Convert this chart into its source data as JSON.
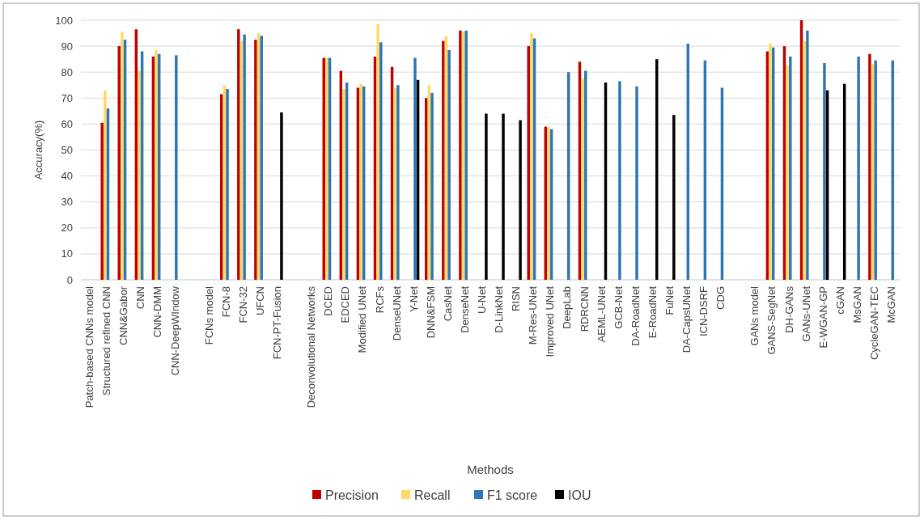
{
  "chart_data": {
    "type": "bar",
    "xlabel": "Methods",
    "ylabel": "Accuracy(%)",
    "categories": [
      "Patch-based CNNs model",
      "Structured refined CNN",
      "CNN&Gabor",
      "CNN",
      "CNN-DMM",
      "CNN-DeepWIndow",
      null,
      "FCNs model",
      "FCN-8",
      "FCN-32",
      "UFCN",
      "FCN-PT-Fusion",
      null,
      "Deconvolutional Networks",
      "DCED",
      "EDCED",
      "Modified UNet",
      "RCFs",
      "DenseUNet",
      "Y-Net",
      "DNN&FSM",
      "CasNet",
      "DenseNet",
      "U-Net",
      "D-LinkNet",
      "RISN",
      "M-Res-UNet",
      "Improved UNet",
      "DeepLab",
      "RDRCNN",
      "AEML-UNet",
      "GCB-Net",
      "DA-RoadNet",
      "E-RoadNet",
      "FuNet",
      "DA-CapsUNet",
      "ICN-DSRF",
      "CDG",
      null,
      "GANs model",
      "GANS-SegNet",
      "DH-GANs",
      "GANs-UNet",
      "E-WGAN-GP",
      "cGAN",
      "MsGAN",
      "CycleGAN-TEC",
      "McGAN"
    ],
    "series": [
      {
        "name": "Precision",
        "color": "#c00000",
        "values": [
          null,
          60.5,
          90,
          96.5,
          86,
          null,
          null,
          null,
          71.5,
          96.5,
          92.5,
          null,
          null,
          null,
          85.5,
          80.5,
          74,
          86,
          82,
          null,
          70,
          92,
          96,
          null,
          null,
          null,
          90,
          59,
          null,
          84,
          null,
          null,
          null,
          null,
          null,
          null,
          null,
          null,
          null,
          null,
          88,
          90,
          100,
          null,
          null,
          null,
          87,
          null
        ]
      },
      {
        "name": "Recall",
        "color": "#ffd966",
        "values": [
          null,
          73,
          95.5,
          80.5,
          88.5,
          null,
          null,
          null,
          75,
          92,
          95,
          null,
          null,
          null,
          85.5,
          73.5,
          75.5,
          98.5,
          74,
          null,
          75,
          94,
          95.5,
          null,
          null,
          null,
          95,
          59,
          null,
          77.5,
          null,
          null,
          null,
          null,
          null,
          null,
          null,
          null,
          null,
          null,
          91,
          82.5,
          92,
          null,
          null,
          null,
          83,
          null
        ]
      },
      {
        "name": "F1 score",
        "color": "#2e75b6",
        "values": [
          null,
          66,
          92.5,
          88,
          87,
          86.5,
          null,
          null,
          73.5,
          94.5,
          94,
          null,
          null,
          null,
          85.5,
          76,
          74.5,
          91.5,
          75,
          85.5,
          72,
          88.5,
          96,
          null,
          null,
          null,
          93,
          58,
          80,
          80.5,
          null,
          76.5,
          74.5,
          null,
          null,
          91,
          84.5,
          74,
          null,
          null,
          89.5,
          86,
          96,
          83.5,
          null,
          86,
          84.5,
          84.5
        ]
      },
      {
        "name": "IOU",
        "color": "#000000",
        "values": [
          null,
          null,
          null,
          null,
          null,
          null,
          null,
          null,
          null,
          null,
          null,
          64.5,
          null,
          null,
          null,
          null,
          null,
          null,
          null,
          77,
          null,
          null,
          null,
          64,
          64,
          61.5,
          null,
          null,
          null,
          null,
          76,
          null,
          null,
          85,
          63.5,
          null,
          null,
          null,
          null,
          null,
          null,
          null,
          null,
          73,
          75.5,
          null,
          null,
          null
        ]
      }
    ],
    "ylim": [
      0,
      100
    ],
    "yticks": [
      0,
      10,
      20,
      30,
      40,
      50,
      60,
      70,
      80,
      90,
      100
    ],
    "grid": "y",
    "legend": "bottom"
  }
}
